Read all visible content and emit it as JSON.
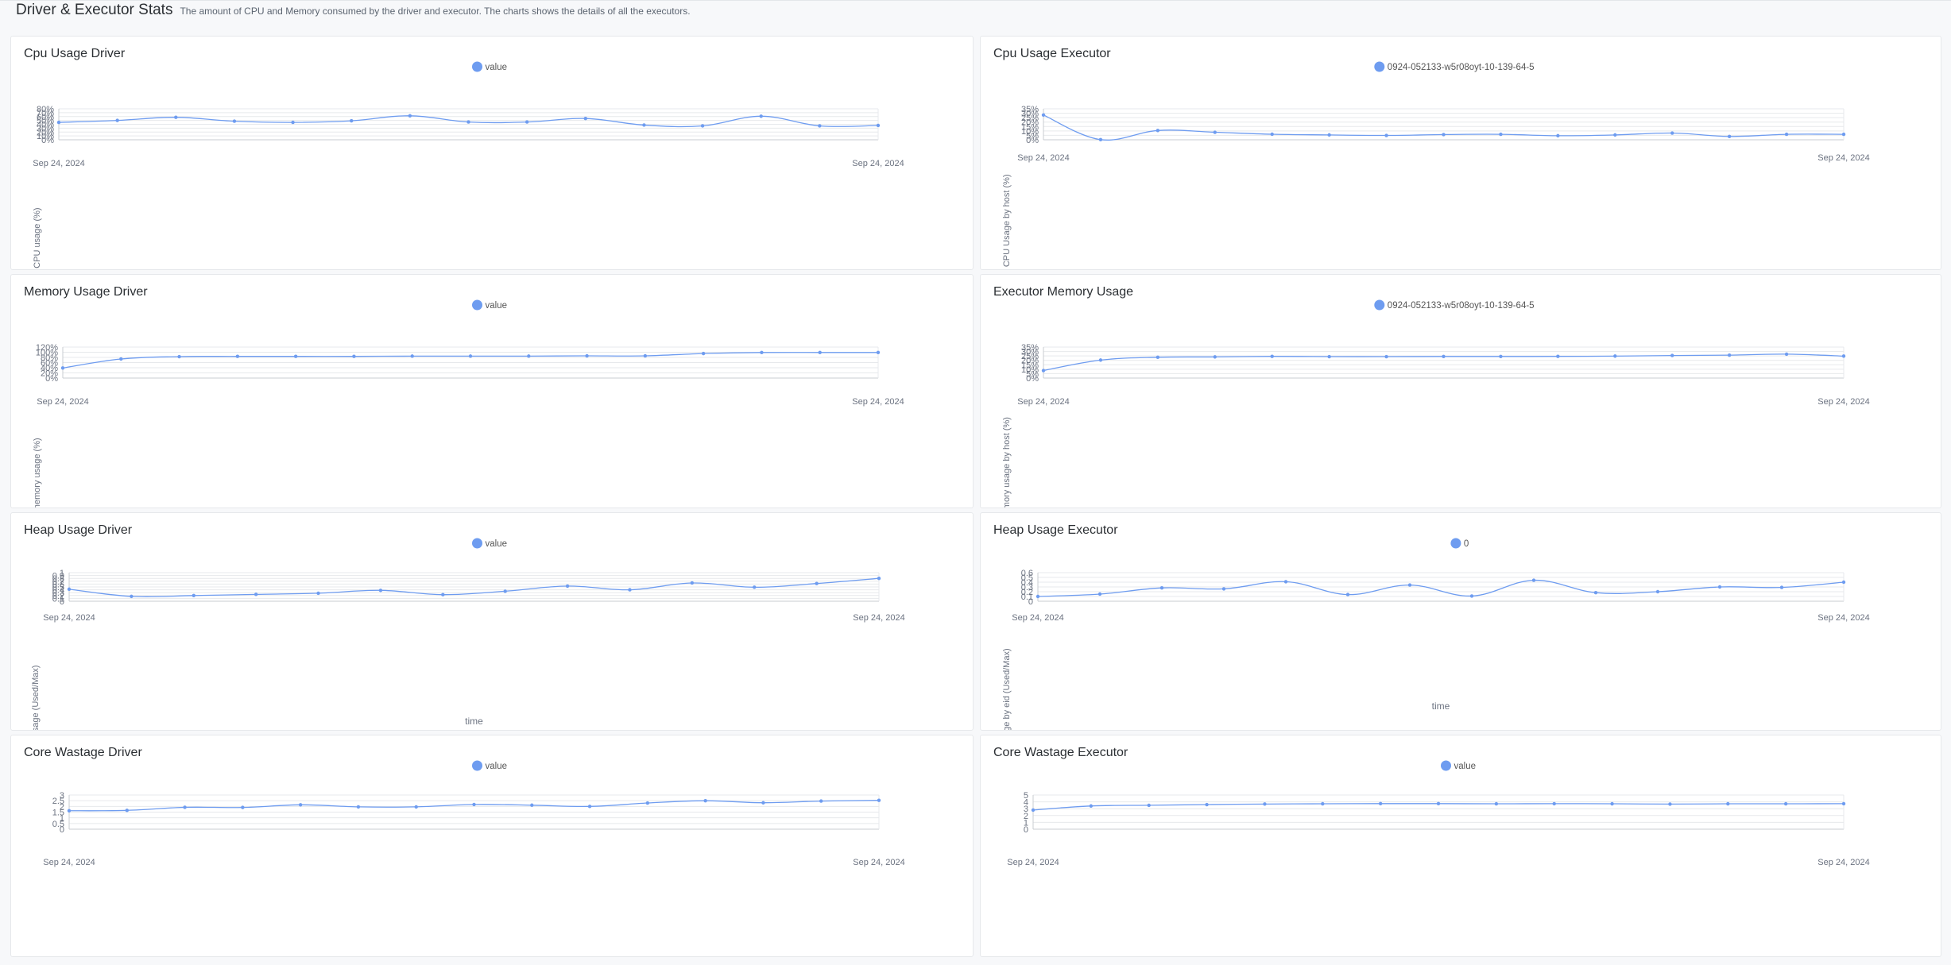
{
  "page": {
    "title": "Driver & Executor Stats",
    "subtitle": "The amount of CPU and Memory consumed by the driver and executor. The charts shows the details of all the executors."
  },
  "colors": {
    "series": "#6e9cf0",
    "grid": "#e7e9ec",
    "axis": "#c9ccd1",
    "text": "#6b7280"
  },
  "chart_data": [
    {
      "id": "cpu-driver",
      "title": "Cpu Usage Driver",
      "type": "line",
      "series_name": "value",
      "ylabel": "Drive CPU usage (%)",
      "xlabel": "",
      "ylim": [
        0,
        80
      ],
      "ytick_step": 10,
      "y_unit": "%",
      "y_decimals": 0,
      "x_start_label": "Sep 24, 2024",
      "x_end_label": "Sep 24, 2024",
      "values": [
        45,
        50,
        58,
        48,
        45,
        49,
        62,
        46,
        46,
        55,
        38,
        36,
        61,
        36,
        37
      ]
    },
    {
      "id": "cpu-executor",
      "title": "Cpu Usage Executor",
      "type": "line",
      "series_name": "0924-052133-w5r08oyt-10-139-64-5",
      "ylabel": "Executor CPU Usage by host (%)",
      "xlabel": "",
      "ylim": [
        0,
        35
      ],
      "ytick_step": 5,
      "y_unit": "%",
      "y_decimals": 0,
      "x_start_label": "Sep 24, 2024",
      "x_end_label": "Sep 24, 2024",
      "values": [
        28,
        0.2,
        10.5,
        8.5,
        6.3,
        5.5,
        4.9,
        5.9,
        6.2,
        4.6,
        5.5,
        7.6,
        3.8,
        6.2,
        6.2
      ]
    },
    {
      "id": "memory-driver",
      "title": "Memory Usage Driver",
      "type": "line",
      "series_name": "value",
      "ylabel": "Driver memory usage (%)",
      "xlabel": "",
      "ylim": [
        0,
        120
      ],
      "ytick_step": 20,
      "y_unit": "%",
      "y_decimals": 0,
      "x_start_label": "Sep 24, 2024",
      "x_end_label": "Sep 24, 2024",
      "values": [
        39,
        74,
        83,
        84,
        84,
        84,
        85,
        85,
        85,
        86,
        86,
        95,
        99,
        99,
        99
      ]
    },
    {
      "id": "memory-executor",
      "title": "Executor Memory Usage",
      "type": "line",
      "series_name": "0924-052133-w5r08oyt-10-139-64-5",
      "ylabel": "Executor memory usage by host (%)",
      "xlabel": "",
      "ylim": [
        0,
        35
      ],
      "ytick_step": 5,
      "y_unit": "%",
      "y_decimals": 0,
      "x_start_label": "Sep 24, 2024",
      "x_end_label": "Sep 24, 2024",
      "values": [
        8.5,
        20.3,
        23.5,
        23.9,
        24.5,
        24.2,
        24.2,
        24.4,
        24.4,
        24.5,
        24.8,
        25.5,
        25.9,
        27.0,
        24.8
      ]
    },
    {
      "id": "heap-driver",
      "title": "Heap Usage Driver",
      "type": "line",
      "series_name": "value",
      "ylabel": "Heap Usage (Used/Max)",
      "xlabel": "time",
      "ylim": [
        0,
        1
      ],
      "ytick_step": 0.1,
      "y_unit": "",
      "y_decimals": 1,
      "x_start_label": "Sep 24, 2024",
      "x_end_label": "Sep 24, 2024",
      "values": [
        0.42,
        0.17,
        0.2,
        0.24,
        0.28,
        0.38,
        0.23,
        0.35,
        0.53,
        0.4,
        0.64,
        0.49,
        0.62,
        0.8
      ]
    },
    {
      "id": "heap-executor",
      "title": "Heap Usage Executor",
      "type": "line",
      "series_name": "0",
      "ylabel": "Heap Usage by eid (Used/Max)",
      "xlabel": "time",
      "ylim": [
        0,
        0.6
      ],
      "ytick_step": 0.1,
      "y_unit": "",
      "y_decimals": 1,
      "x_start_label": "Sep 24, 2024",
      "x_end_label": "Sep 24, 2024",
      "values": [
        0.1,
        0.15,
        0.28,
        0.26,
        0.41,
        0.14,
        0.34,
        0.11,
        0.44,
        0.18,
        0.2,
        0.3,
        0.29,
        0.4
      ]
    },
    {
      "id": "core-driver",
      "title": "Core Wastage Driver",
      "type": "line",
      "series_name": "value",
      "ylabel": "",
      "xlabel": "",
      "ylim": [
        0,
        3
      ],
      "ytick_step": 0.5,
      "y_unit": "",
      "y_decimals": 1,
      "x_start_label": "Sep 24, 2024",
      "x_end_label": "Sep 24, 2024",
      "values": [
        1.62,
        1.65,
        1.92,
        1.91,
        2.14,
        1.96,
        1.96,
        2.17,
        2.11,
        2.0,
        2.3,
        2.5,
        2.32,
        2.47,
        2.53
      ]
    },
    {
      "id": "core-executor",
      "title": "Core Wastage Executor",
      "type": "line",
      "series_name": "value",
      "ylabel": "",
      "xlabel": "",
      "ylim": [
        0,
        5
      ],
      "ytick_step": 1,
      "y_unit": "",
      "y_decimals": 0,
      "x_start_label": "Sep 24, 2024",
      "x_end_label": "Sep 24, 2024",
      "values": [
        2.8,
        3.4,
        3.5,
        3.6,
        3.68,
        3.72,
        3.74,
        3.74,
        3.72,
        3.73,
        3.72,
        3.67,
        3.72,
        3.72,
        3.73
      ]
    }
  ]
}
